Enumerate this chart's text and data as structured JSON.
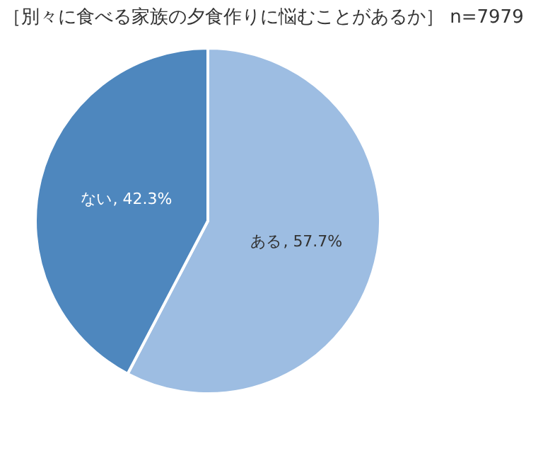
{
  "chart_data": {
    "type": "pie",
    "title": "［別々に食べる家族の夕食作りに悩むことがあるか］ n=7979",
    "categories": [
      "ある",
      "ない"
    ],
    "values": [
      57.7,
      42.3
    ],
    "colors": [
      "#9dbde2",
      "#4e87be"
    ],
    "value_labels": [
      ", 57.7%",
      ", 42.3%"
    ],
    "legend": false
  }
}
